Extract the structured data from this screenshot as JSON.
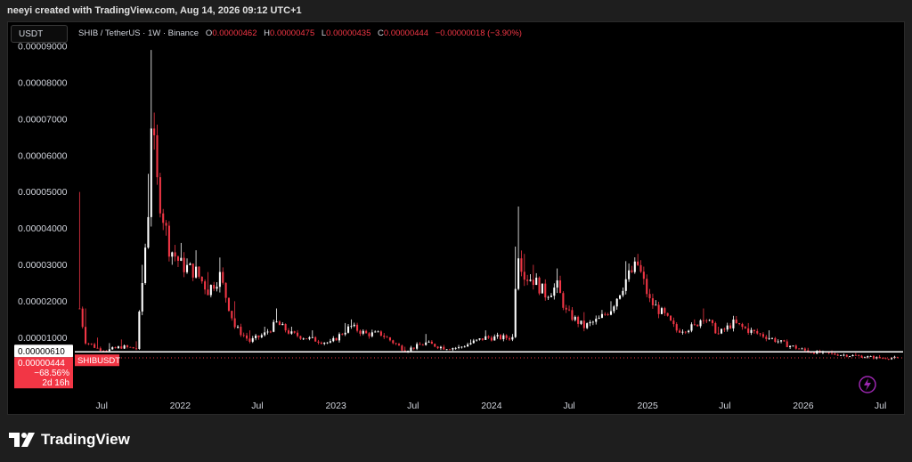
{
  "header": {
    "credit": "neeyi created with TradingView.com, Aug 14, 2026 09:12 UTC+1"
  },
  "currency_badge": "USDT",
  "legend": {
    "symbol": "SHIB / TetherUS · 1W · Binance",
    "open_label": "O",
    "open": "0.00000462",
    "high_label": "H",
    "high": "0.00000475",
    "low_label": "L",
    "low": "0.00000435",
    "close_label": "C",
    "close": "0.00000444",
    "change": "−0.00000018 (−3.90%)"
  },
  "price_tags": {
    "line_price": "0.00000610",
    "current_price": "0.00000444",
    "current_change": "−68.56%",
    "countdown": "2d 16h",
    "ticker": "SHIBUSDT"
  },
  "footer": {
    "brand": "TradingView"
  },
  "colors": {
    "bull": "#ffffff",
    "bear": "#f23645",
    "background": "#000000",
    "text": "#d1d4dc"
  },
  "chart_data": {
    "type": "candlestick",
    "symbol": "SHIB / TetherUS",
    "interval": "1W",
    "exchange": "Binance",
    "y_ticks": [
      "0.00009000",
      "0.00008000",
      "0.00007000",
      "0.00006000",
      "0.00005000",
      "0.00004000",
      "0.00003000",
      "0.00002000",
      "0.00001000"
    ],
    "y_tick_values": [
      9e-05,
      8e-05,
      7e-05,
      6e-05,
      5e-05,
      4e-05,
      3e-05,
      2e-05,
      1e-05
    ],
    "ylim": [
      2e-06,
      9.05e-05
    ],
    "x_ticks": [
      "Jul",
      "2022",
      "Jul",
      "2023",
      "Jul",
      "2024",
      "Jul",
      "2025",
      "Jul",
      "2026",
      "Jul"
    ],
    "x_tick_dates": [
      "2021-07-01",
      "2022-01-01",
      "2022-07-01",
      "2023-01-01",
      "2023-07-01",
      "2024-01-01",
      "2024-07-01",
      "2025-01-01",
      "2025-07-01",
      "2026-01-01",
      "2026-07-01"
    ],
    "xlim": [
      "2021-05-03",
      "2026-08-23"
    ],
    "horizontal_line": 6.1e-06,
    "keypoints": [
      {
        "date": "2021-05-10",
        "close": 1.8e-05,
        "high": 5e-05
      },
      {
        "date": "2021-05-24",
        "close": 9e-06,
        "high": 1.8e-05
      },
      {
        "date": "2021-06-21",
        "close": 7e-06,
        "high": 1e-05
      },
      {
        "date": "2021-07-19",
        "close": 6.6e-06,
        "high": 8.5e-06
      },
      {
        "date": "2021-08-16",
        "close": 7.5e-06,
        "high": 9.5e-06
      },
      {
        "date": "2021-09-20",
        "close": 7e-06,
        "high": 9e-06
      },
      {
        "date": "2021-10-04",
        "close": 2.5e-05,
        "high": 3e-05
      },
      {
        "date": "2021-10-18",
        "close": 4.5e-05,
        "high": 5.5e-05
      },
      {
        "date": "2021-10-25",
        "close": 7e-05,
        "high": 8.9e-05
      },
      {
        "date": "2021-11-08",
        "close": 5.2e-05,
        "high": 6e-05
      },
      {
        "date": "2021-12-06",
        "close": 3.5e-05,
        "high": 4.2e-05
      },
      {
        "date": "2022-01-03",
        "close": 3e-05,
        "high": 3.6e-05
      },
      {
        "date": "2022-02-07",
        "close": 2.8e-05,
        "high": 3.4e-05
      },
      {
        "date": "2022-03-07",
        "close": 2.3e-05,
        "high": 2.8e-05
      },
      {
        "date": "2022-04-04",
        "close": 2.7e-05,
        "high": 3.2e-05
      },
      {
        "date": "2022-05-09",
        "close": 1.3e-05,
        "high": 2e-05
      },
      {
        "date": "2022-06-13",
        "close": 9e-06,
        "high": 1.2e-05
      },
      {
        "date": "2022-07-18",
        "close": 1.1e-05,
        "high": 1.3e-05
      },
      {
        "date": "2022-08-15",
        "close": 1.4e-05,
        "high": 1.8e-05
      },
      {
        "date": "2022-09-19",
        "close": 1.1e-05,
        "high": 1.3e-05
      },
      {
        "date": "2022-11-07",
        "close": 9.5e-06,
        "high": 1.2e-05
      },
      {
        "date": "2022-12-19",
        "close": 8.5e-06,
        "high": 9.5e-06
      },
      {
        "date": "2023-01-23",
        "close": 1.2e-05,
        "high": 1.4e-05
      },
      {
        "date": "2023-02-06",
        "close": 1.3e-05,
        "high": 1.5e-05
      },
      {
        "date": "2023-03-13",
        "close": 1.1e-05,
        "high": 1.2e-05
      },
      {
        "date": "2023-04-17",
        "close": 1.1e-05,
        "high": 1.2e-05
      },
      {
        "date": "2023-06-12",
        "close": 6.5e-06,
        "high": 7.5e-06
      },
      {
        "date": "2023-07-31",
        "close": 8.5e-06,
        "high": 1.1e-05
      },
      {
        "date": "2023-09-11",
        "close": 7.2e-06,
        "high": 8e-06
      },
      {
        "date": "2023-10-16",
        "close": 7.2e-06,
        "high": 8e-06
      },
      {
        "date": "2023-11-13",
        "close": 8.5e-06,
        "high": 9.5e-06
      },
      {
        "date": "2023-12-18",
        "close": 1e-05,
        "high": 1.2e-05
      },
      {
        "date": "2024-02-19",
        "close": 1e-05,
        "high": 1.1e-05
      },
      {
        "date": "2024-02-26",
        "close": 2.5e-05,
        "high": 3.5e-05
      },
      {
        "date": "2024-03-04",
        "close": 3.4e-05,
        "high": 4.6e-05
      },
      {
        "date": "2024-03-18",
        "close": 2.7e-05,
        "high": 3.3e-05
      },
      {
        "date": "2024-04-08",
        "close": 2.6e-05,
        "high": 3e-05
      },
      {
        "date": "2024-05-06",
        "close": 2.2e-05,
        "high": 2.6e-05
      },
      {
        "date": "2024-06-03",
        "close": 2.4e-05,
        "high": 2.9e-05
      },
      {
        "date": "2024-06-24",
        "close": 1.7e-05,
        "high": 1.9e-05
      },
      {
        "date": "2024-08-05",
        "close": 1.3e-05,
        "high": 1.7e-05
      },
      {
        "date": "2024-09-09",
        "close": 1.5e-05,
        "high": 1.6e-05
      },
      {
        "date": "2024-10-07",
        "close": 1.8e-05,
        "high": 2e-05
      },
      {
        "date": "2024-11-11",
        "close": 2.6e-05,
        "high": 3.1e-05
      },
      {
        "date": "2024-12-09",
        "close": 3e-05,
        "high": 3.3e-05
      },
      {
        "date": "2025-01-06",
        "close": 2e-05,
        "high": 2.3e-05
      },
      {
        "date": "2025-02-10",
        "close": 1.6e-05,
        "high": 1.8e-05
      },
      {
        "date": "2025-03-10",
        "close": 1.2e-05,
        "high": 1.4e-05
      },
      {
        "date": "2025-04-21",
        "close": 1.3e-05,
        "high": 1.5e-05
      },
      {
        "date": "2025-05-12",
        "close": 1.6e-05,
        "high": 1.8e-05
      },
      {
        "date": "2025-06-16",
        "close": 1.1e-05,
        "high": 1.3e-05
      },
      {
        "date": "2025-07-21",
        "close": 1.4e-05,
        "high": 1.6e-05
      },
      {
        "date": "2025-08-25",
        "close": 1.2e-05,
        "high": 1.4e-05
      },
      {
        "date": "2025-10-13",
        "close": 1e-05,
        "high": 1.2e-05
      },
      {
        "date": "2025-11-24",
        "close": 8e-06,
        "high": 9.5e-06
      },
      {
        "date": "2026-01-12",
        "close": 6.2e-06,
        "high": 7.2e-06
      },
      {
        "date": "2026-03-09",
        "close": 5.5e-06,
        "high": 6.5e-06
      },
      {
        "date": "2026-05-04",
        "close": 5e-06,
        "high": 5.8e-06
      },
      {
        "date": "2026-06-29",
        "close": 4.4e-06,
        "high": 5.2e-06
      },
      {
        "date": "2026-08-10",
        "close": 4.44e-06,
        "high": 4.75e-06
      }
    ],
    "last_bar": {
      "open": 4.62e-06,
      "high": 4.75e-06,
      "low": 4.35e-06,
      "close": 4.44e-06
    },
    "grid": false,
    "legend_position": "top-left"
  }
}
